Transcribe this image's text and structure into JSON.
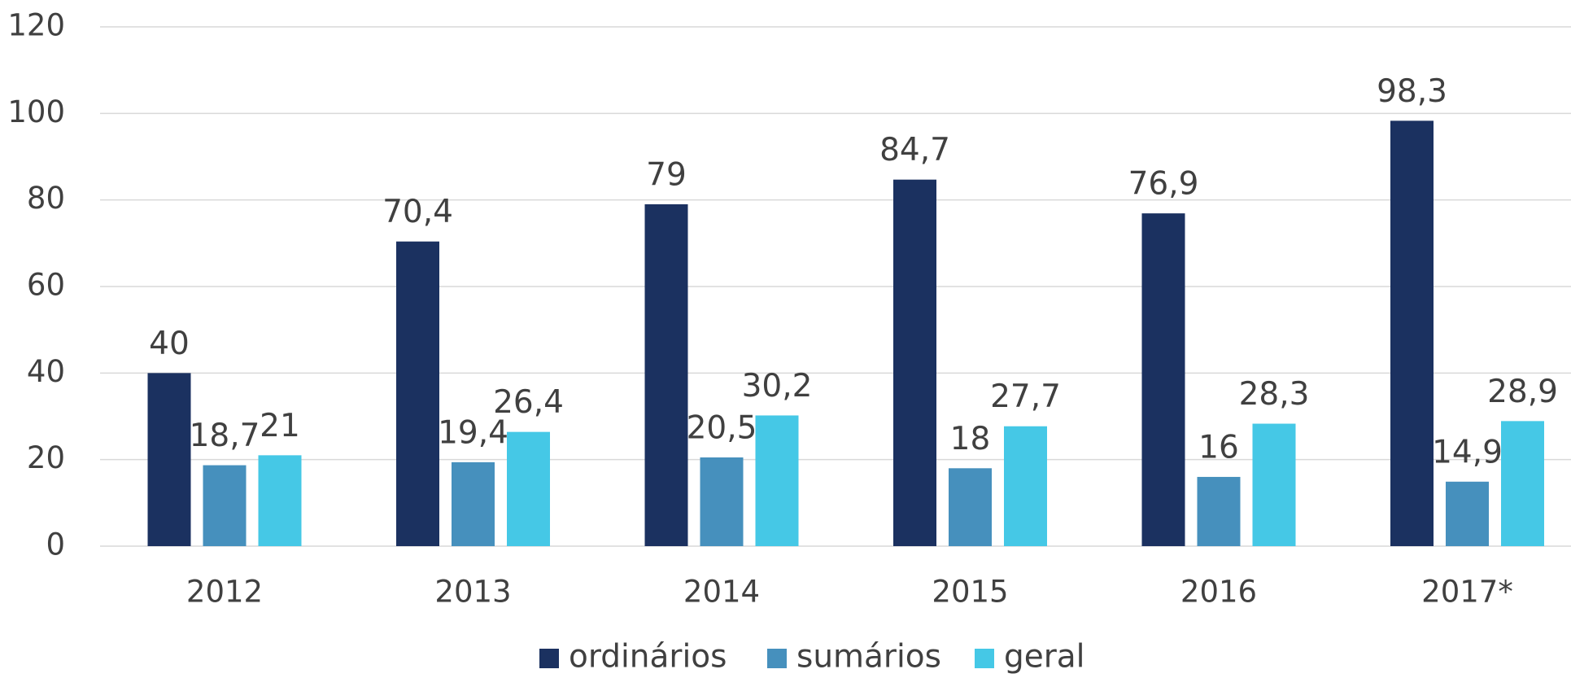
{
  "chart_data": {
    "type": "bar",
    "categories": [
      "2012",
      "2013",
      "2014",
      "2015",
      "2016",
      "2017*"
    ],
    "series": [
      {
        "name": "ordinários",
        "color": "#1b3160",
        "values": [
          40,
          70.4,
          79,
          84.7,
          76.9,
          98.3
        ],
        "value_labels": [
          "40",
          "70,4",
          "79",
          "84,7",
          "76,9",
          "98,3"
        ]
      },
      {
        "name": "sumários",
        "color": "#4690bd",
        "values": [
          18.7,
          19.4,
          20.5,
          18,
          16,
          14.9
        ],
        "value_labels": [
          "18,7",
          "19,4",
          "20,5",
          "18",
          "16",
          "14,9"
        ]
      },
      {
        "name": "geral",
        "color": "#45c8e6",
        "values": [
          21,
          26.4,
          30.2,
          27.7,
          28.3,
          28.9
        ],
        "value_labels": [
          "21",
          "26,4",
          "30,2",
          "27,7",
          "28,3",
          "28,9"
        ]
      }
    ],
    "ylim": [
      0,
      120
    ],
    "yticks": [
      0,
      20,
      40,
      60,
      80,
      100,
      120
    ],
    "grid": true,
    "legend": "bottom"
  }
}
